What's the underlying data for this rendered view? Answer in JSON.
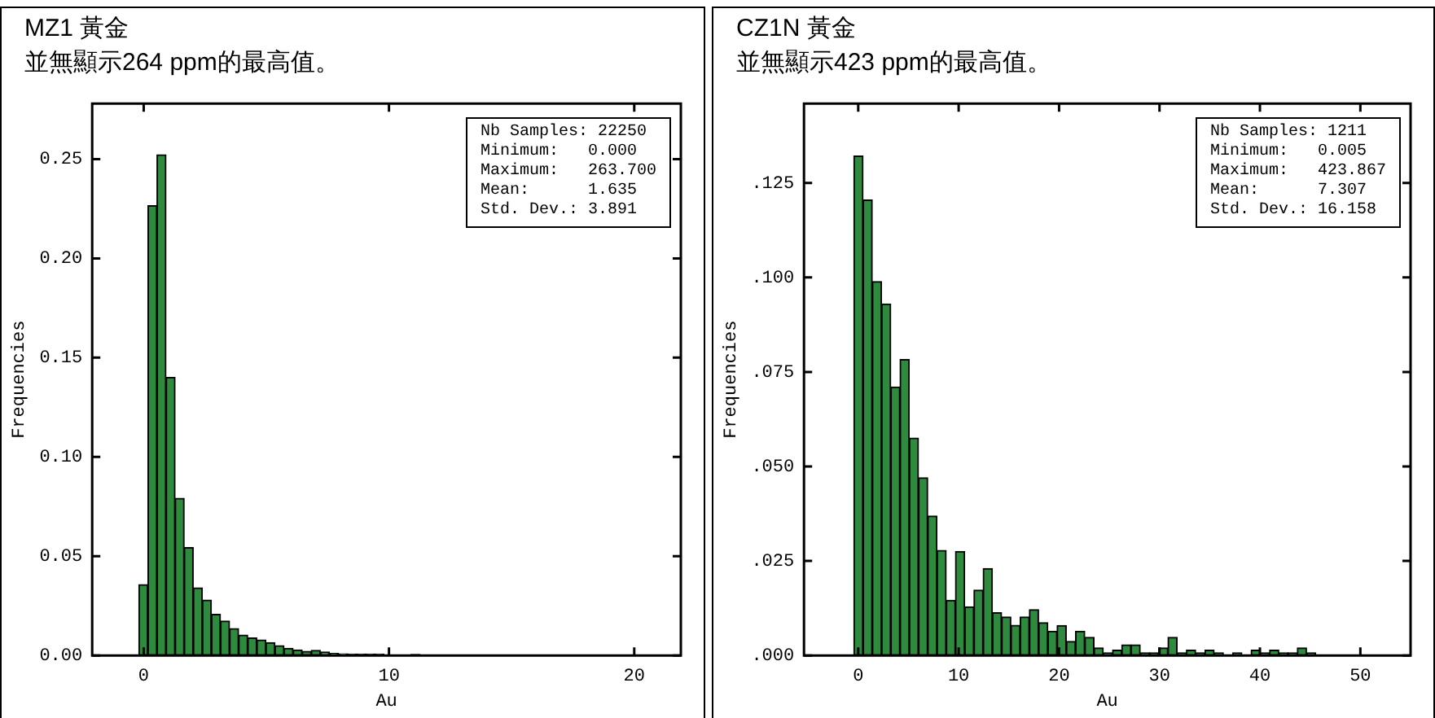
{
  "chart_data": [
    {
      "type": "histogram",
      "title": "MZ1 黃金",
      "subtitle": "並無顯示264 ppm的最高值。",
      "xlabel": "Au",
      "ylabel": "Frequencies",
      "color": "#2e8b3e",
      "bins": [
        -0.2,
        0.17,
        0.54,
        0.91,
        1.28,
        1.65,
        2.02,
        2.39,
        2.76,
        3.13,
        3.5,
        3.87,
        4.24,
        4.61,
        4.98,
        5.35,
        5.72,
        6.09,
        6.46,
        6.83,
        7.2,
        7.57,
        7.94,
        8.31,
        8.68,
        9.05,
        9.42,
        9.79,
        10.16,
        10.53,
        10.9,
        11.27
      ],
      "values": [
        0.0357,
        0.2266,
        0.2522,
        0.14,
        0.0792,
        0.0543,
        0.0341,
        0.0279,
        0.0207,
        0.0173,
        0.0135,
        0.0103,
        0.0088,
        0.0078,
        0.0065,
        0.0049,
        0.0036,
        0.0028,
        0.0021,
        0.0026,
        0.0018,
        0.001,
        0.0008,
        0.0007,
        0.0007,
        0.0007,
        0.0007,
        0,
        0,
        0,
        0.0005
      ],
      "xlim": [
        -2.1,
        21.9
      ],
      "xticks": [
        0,
        10,
        20
      ],
      "ylim": [
        0,
        0.278
      ],
      "yticks": [
        {
          "value": 0,
          "label": "0.00"
        },
        {
          "value": 0.05,
          "label": "0.05"
        },
        {
          "value": 0.1,
          "label": "0.10"
        },
        {
          "value": 0.15,
          "label": "0.15"
        },
        {
          "value": 0.2,
          "label": "0.20"
        },
        {
          "value": 0.25,
          "label": "0.25"
        }
      ],
      "annotations": [
        "Nb Samples: 22250\nMinimum:   0.000\nMaximum:   263.700\nMean:      1.635\nStd. Dev.: 3.891"
      ]
    },
    {
      "type": "histogram",
      "title": "CZ1N 黃金",
      "subtitle": "並無顯示423 ppm的最高值。",
      "xlabel": "Au",
      "ylabel": "Frequencies",
      "color": "#2e8b3e",
      "bins": [
        -0.44,
        0.48,
        1.4,
        2.32,
        3.24,
        4.16,
        5.08,
        6,
        6.92,
        7.84,
        8.76,
        9.68,
        10.6,
        11.52,
        12.44,
        13.36,
        14.28,
        15.2,
        16.12,
        17.04,
        17.96,
        18.88,
        19.8,
        20.72,
        21.64,
        22.56,
        23.48,
        24.4,
        25.32,
        26.24,
        27.16,
        28.08,
        29,
        29.92,
        30.84,
        31.76,
        32.68,
        33.6,
        34.52,
        35.44,
        36.36,
        37.28,
        38.2,
        39.12,
        40.04,
        40.96,
        41.88,
        42.8,
        43.72,
        44.64,
        45.56
      ],
      "values": [
        0.1321,
        0.1205,
        0.0989,
        0.093,
        0.071,
        0.0783,
        0.0575,
        0.047,
        0.0369,
        0.0278,
        0.0146,
        0.0275,
        0.0129,
        0.0173,
        0.023,
        0.0113,
        0.0102,
        0.008,
        0.0102,
        0.0121,
        0.0087,
        0.0064,
        0.0079,
        0.0037,
        0.0064,
        0.0048,
        0.002,
        0.0007,
        0.0014,
        0.0028,
        0.0028,
        0.0007,
        0.0007,
        0.002,
        0.0048,
        0.0007,
        0.0014,
        0.0007,
        0.0014,
        0.0007,
        0,
        0.0007,
        0,
        0.0014,
        0.0007,
        0.0014,
        0.0007,
        0.0007,
        0.002,
        0.0007
      ],
      "xlim": [
        -5.4,
        55
      ],
      "xticks": [
        0,
        10,
        20,
        30,
        40,
        50
      ],
      "ylim": [
        0,
        0.146
      ],
      "yticks": [
        {
          "value": 0,
          "label": ".000"
        },
        {
          "value": 0.025,
          "label": ".025"
        },
        {
          "value": 0.05,
          "label": ".050"
        },
        {
          "value": 0.075,
          "label": ".075"
        },
        {
          "value": 0.1,
          "label": ".100"
        },
        {
          "value": 0.125,
          "label": ".125"
        }
      ],
      "annotations": [
        "Nb Samples: 1211\nMinimum:   0.005\nMaximum:   423.867\nMean:      7.307\nStd. Dev.: 16.158"
      ]
    }
  ]
}
